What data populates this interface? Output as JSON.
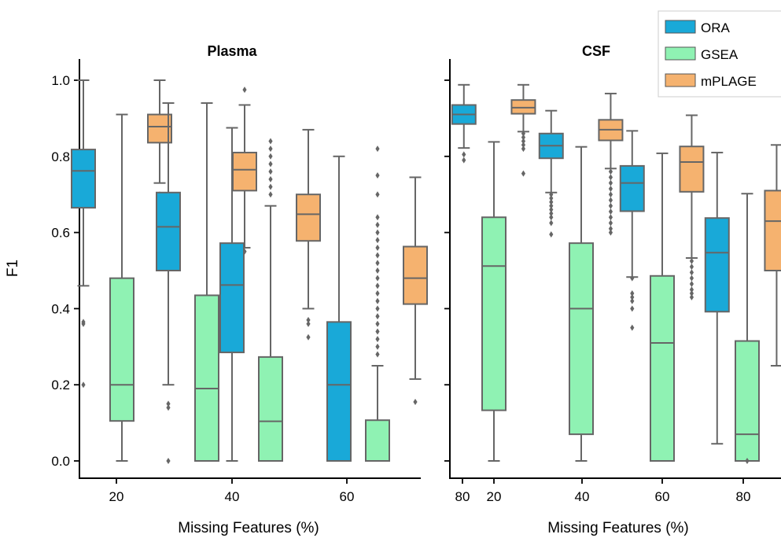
{
  "chart_data": {
    "type": "box",
    "series": [
      {
        "name": "ORA",
        "color": "#19a9d8"
      },
      {
        "name": "GSEA",
        "color": "#8ff2b3"
      },
      {
        "name": "mPLAGE",
        "color": "#f5b26f"
      }
    ],
    "ylabel": "F1",
    "xlabel": "Missing Features (%)",
    "categories": [
      "20",
      "40",
      "60",
      "80"
    ],
    "yticks": [
      "0.0",
      "0.2",
      "0.4",
      "0.6",
      "0.8",
      "1.0"
    ],
    "ylim": [
      -0.05,
      1.06
    ],
    "legend_position": "top-right",
    "panels": [
      {
        "title": "Plasma",
        "boxes": [
          {
            "category": "20",
            "series": "ORA",
            "whislo": 0.46,
            "q1": 0.665,
            "med": 0.762,
            "q3": 0.818,
            "whishi": 1.0,
            "fliers": [
              0.365,
              0.36,
              0.2
            ]
          },
          {
            "category": "20",
            "series": "GSEA",
            "whislo": 0.0,
            "q1": 0.105,
            "med": 0.2,
            "q3": 0.48,
            "whishi": 0.91,
            "fliers": []
          },
          {
            "category": "20",
            "series": "mPLAGE",
            "whislo": 0.73,
            "q1": 0.836,
            "med": 0.878,
            "q3": 0.91,
            "whishi": 1.0,
            "fliers": [
              0.7,
              0.695,
              0.605
            ]
          },
          {
            "category": "40",
            "series": "ORA",
            "whislo": 0.2,
            "q1": 0.5,
            "med": 0.615,
            "q3": 0.705,
            "whishi": 0.94,
            "fliers": [
              0.15,
              0.14,
              0.0
            ]
          },
          {
            "category": "40",
            "series": "GSEA",
            "whislo": 0.0,
            "q1": 0.0,
            "med": 0.19,
            "q3": 0.435,
            "whishi": 0.94,
            "fliers": []
          },
          {
            "category": "40",
            "series": "mPLAGE",
            "whislo": 0.56,
            "q1": 0.71,
            "med": 0.765,
            "q3": 0.81,
            "whishi": 0.935,
            "fliers": [
              0.55,
              0.975
            ]
          },
          {
            "category": "60",
            "series": "ORA",
            "whislo": 0.0,
            "q1": 0.285,
            "med": 0.462,
            "q3": 0.572,
            "whishi": 0.875,
            "fliers": []
          },
          {
            "category": "60",
            "series": "GSEA",
            "whislo": 0.0,
            "q1": 0.0,
            "med": 0.104,
            "q3": 0.273,
            "whishi": 0.67,
            "fliers": [
              0.7,
              0.72,
              0.74,
              0.76,
              0.78,
              0.8,
              0.82,
              0.84
            ]
          },
          {
            "category": "60",
            "series": "mPLAGE",
            "whislo": 0.4,
            "q1": 0.578,
            "med": 0.648,
            "q3": 0.7,
            "whishi": 0.87,
            "fliers": [
              0.37,
              0.36,
              0.325
            ]
          },
          {
            "category": "80",
            "series": "ORA",
            "whislo": 0.0,
            "q1": 0.0,
            "med": 0.2,
            "q3": 0.365,
            "whishi": 0.8,
            "fliers": []
          },
          {
            "category": "80",
            "series": "GSEA",
            "whislo": 0.0,
            "q1": 0.0,
            "med": 0.0,
            "q3": 0.107,
            "whishi": 0.25,
            "fliers": [
              0.28,
              0.3,
              0.32,
              0.34,
              0.36,
              0.38,
              0.4,
              0.42,
              0.44,
              0.46,
              0.48,
              0.5,
              0.52,
              0.54,
              0.56,
              0.58,
              0.6,
              0.62,
              0.64,
              0.7,
              0.75,
              0.82
            ]
          },
          {
            "category": "80",
            "series": "mPLAGE",
            "whislo": 0.215,
            "q1": 0.412,
            "med": 0.48,
            "q3": 0.563,
            "whishi": 0.745,
            "fliers": [
              0.155
            ]
          }
        ]
      },
      {
        "title": "CSF",
        "boxes": [
          {
            "category": "20",
            "series": "ORA",
            "whislo": 0.822,
            "q1": 0.885,
            "med": 0.91,
            "q3": 0.935,
            "whishi": 0.988,
            "fliers": [
              0.805,
              0.79
            ]
          },
          {
            "category": "20",
            "series": "GSEA",
            "whislo": 0.0,
            "q1": 0.133,
            "med": 0.512,
            "q3": 0.64,
            "whishi": 0.838,
            "fliers": []
          },
          {
            "category": "20",
            "series": "mPLAGE",
            "whislo": 0.865,
            "q1": 0.912,
            "med": 0.928,
            "q3": 0.948,
            "whishi": 0.988,
            "fliers": [
              0.86,
              0.85,
              0.84,
              0.83,
              0.82,
              0.755
            ]
          },
          {
            "category": "40",
            "series": "ORA",
            "whislo": 0.705,
            "q1": 0.795,
            "med": 0.828,
            "q3": 0.86,
            "whishi": 0.92,
            "fliers": [
              0.7,
              0.69,
              0.68,
              0.67,
              0.66,
              0.65,
              0.64,
              0.625,
              0.595
            ]
          },
          {
            "category": "40",
            "series": "GSEA",
            "whislo": 0.0,
            "q1": 0.07,
            "med": 0.4,
            "q3": 0.572,
            "whishi": 0.825,
            "fliers": []
          },
          {
            "category": "40",
            "series": "mPLAGE",
            "whislo": 0.768,
            "q1": 0.842,
            "med": 0.87,
            "q3": 0.896,
            "whishi": 0.965,
            "fliers": [
              0.76,
              0.745,
              0.73,
              0.715,
              0.7,
              0.685,
              0.67,
              0.655,
              0.64,
              0.625,
              0.61,
              0.6
            ]
          },
          {
            "category": "60",
            "series": "ORA",
            "whislo": 0.483,
            "q1": 0.656,
            "med": 0.73,
            "q3": 0.775,
            "whishi": 0.867,
            "fliers": [
              0.48,
              0.44,
              0.43,
              0.42,
              0.4,
              0.35
            ]
          },
          {
            "category": "60",
            "series": "GSEA",
            "whislo": 0.0,
            "q1": 0.0,
            "med": 0.31,
            "q3": 0.486,
            "whishi": 0.808,
            "fliers": []
          },
          {
            "category": "60",
            "series": "mPLAGE",
            "whislo": 0.533,
            "q1": 0.707,
            "med": 0.785,
            "q3": 0.826,
            "whishi": 0.908,
            "fliers": [
              0.525,
              0.51,
              0.495,
              0.48,
              0.465,
              0.45,
              0.44,
              0.43
            ]
          },
          {
            "category": "80",
            "series": "ORA",
            "whislo": 0.045,
            "q1": 0.392,
            "med": 0.547,
            "q3": 0.638,
            "whishi": 0.81,
            "fliers": []
          },
          {
            "category": "80",
            "series": "GSEA",
            "whislo": 0.0,
            "q1": 0.0,
            "med": 0.07,
            "q3": 0.315,
            "whishi": 0.702,
            "fliers": [
              0.0
            ]
          },
          {
            "category": "80",
            "series": "mPLAGE",
            "whislo": 0.25,
            "q1": 0.5,
            "med": 0.63,
            "q3": 0.71,
            "whishi": 0.83,
            "fliers": []
          }
        ]
      }
    ]
  }
}
